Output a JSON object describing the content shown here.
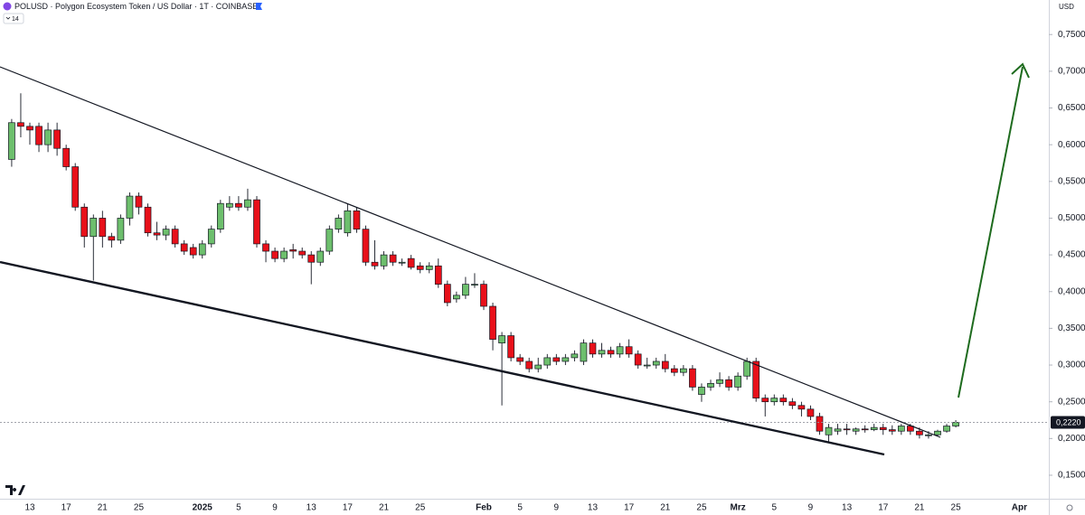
{
  "chart_data": {
    "type": "candlestick",
    "title": "POLUSD · Polygon Ecosystem Token / US Dollar · 1T · COINBASE",
    "badge": "14",
    "currency": "USD",
    "up_color": "#6dbf6d",
    "down_color": "#e8101a",
    "grid": false,
    "categories": [
      null,
      null,
      "13",
      null,
      null,
      null,
      "17",
      null,
      null,
      null,
      "21",
      null,
      null,
      null,
      "25",
      null,
      null,
      null,
      null,
      null,
      null,
      "2025",
      null,
      null,
      null,
      "5",
      null,
      null,
      null,
      "9",
      null,
      null,
      null,
      "13",
      null,
      null,
      null,
      "17",
      null,
      null,
      null,
      "21",
      null,
      null,
      null,
      "25",
      null,
      null,
      null,
      null,
      null,
      null,
      "Feb",
      null,
      null,
      null,
      "5",
      null,
      null,
      null,
      "9",
      null,
      null,
      null,
      "13",
      null,
      null,
      null,
      "17",
      null,
      null,
      null,
      "21",
      null,
      null,
      null,
      "25",
      null,
      null,
      null,
      "Mrz",
      null,
      null,
      null,
      "5",
      null,
      null,
      null,
      "9",
      null,
      null,
      null,
      "13",
      null,
      null,
      null,
      "17",
      null,
      null,
      null,
      "21",
      null,
      null,
      null,
      "25",
      null,
      null,
      null,
      null,
      null,
      null,
      "Apr"
    ],
    "open": [
      0.58,
      0.63,
      0.625,
      0.625,
      0.6,
      0.62,
      0.595,
      0.57,
      0.515,
      0.475,
      0.5,
      0.475,
      0.47,
      0.5,
      0.53,
      0.515,
      0.48,
      0.477,
      0.485,
      0.465,
      0.46,
      0.45,
      0.465,
      0.485,
      0.515,
      0.52,
      0.515,
      0.525,
      0.465,
      0.455,
      0.445,
      0.457,
      0.455,
      0.45,
      0.44,
      0.455,
      0.485,
      0.48,
      0.51,
      0.485,
      0.44,
      0.435,
      0.45,
      0.44,
      0.445,
      0.435,
      0.43,
      0.435,
      0.41,
      0.39,
      0.395,
      0.41,
      0.41,
      0.38,
      0.33,
      0.34,
      0.31,
      0.305,
      0.295,
      0.3,
      0.31,
      0.305,
      0.31,
      0.305,
      0.33,
      0.315,
      0.32,
      0.315,
      0.325,
      0.315,
      0.3,
      0.3,
      0.305,
      0.295,
      0.29,
      0.295,
      0.26,
      0.27,
      0.275,
      0.28,
      0.27,
      0.285,
      0.305,
      0.255,
      0.25,
      0.255,
      0.25,
      0.245,
      0.24,
      0.23,
      0.205,
      0.21,
      0.213,
      0.21,
      0.213,
      0.212,
      0.215,
      0.212,
      0.21,
      0.217,
      0.21,
      0.205,
      0.205,
      0.21,
      0.217,
      null,
      null,
      null,
      null,
      null,
      null,
      null
    ],
    "high": [
      0.635,
      0.67,
      0.63,
      0.63,
      0.63,
      0.63,
      0.6,
      0.575,
      0.52,
      0.505,
      0.51,
      0.48,
      0.505,
      0.535,
      0.535,
      0.52,
      0.495,
      0.49,
      0.49,
      0.47,
      0.465,
      0.47,
      0.49,
      0.525,
      0.53,
      0.53,
      0.54,
      0.53,
      0.47,
      0.46,
      0.46,
      0.465,
      0.46,
      0.455,
      0.46,
      0.49,
      0.505,
      0.52,
      0.515,
      0.49,
      0.47,
      0.455,
      0.455,
      0.445,
      0.45,
      0.44,
      0.44,
      0.445,
      0.415,
      0.4,
      0.42,
      0.425,
      0.415,
      0.385,
      0.345,
      0.345,
      0.315,
      0.31,
      0.31,
      0.315,
      0.315,
      0.315,
      0.32,
      0.335,
      0.335,
      0.33,
      0.325,
      0.33,
      0.335,
      0.32,
      0.31,
      0.31,
      0.315,
      0.3,
      0.3,
      0.3,
      0.275,
      0.28,
      0.29,
      0.285,
      0.29,
      0.31,
      0.31,
      0.26,
      0.26,
      0.26,
      0.255,
      0.25,
      0.245,
      0.235,
      0.22,
      0.22,
      0.22,
      0.215,
      0.218,
      0.22,
      0.22,
      0.218,
      0.22,
      0.22,
      0.215,
      0.21,
      0.212,
      0.22,
      0.225,
      null,
      null,
      null,
      null,
      null,
      null,
      null
    ],
    "low": [
      0.57,
      0.61,
      0.6,
      0.59,
      0.59,
      0.585,
      0.565,
      0.51,
      0.46,
      0.415,
      0.46,
      0.46,
      0.465,
      0.49,
      0.505,
      0.475,
      0.47,
      0.47,
      0.46,
      0.45,
      0.445,
      0.445,
      0.46,
      0.48,
      0.51,
      0.51,
      0.51,
      0.46,
      0.44,
      0.44,
      0.44,
      0.445,
      0.445,
      0.41,
      0.435,
      0.45,
      0.48,
      0.475,
      0.48,
      0.435,
      0.43,
      0.43,
      0.435,
      0.435,
      0.43,
      0.425,
      0.425,
      0.405,
      0.38,
      0.385,
      0.39,
      0.405,
      0.375,
      0.32,
      0.245,
      0.305,
      0.3,
      0.29,
      0.29,
      0.295,
      0.3,
      0.3,
      0.305,
      0.3,
      0.31,
      0.31,
      0.31,
      0.31,
      0.31,
      0.295,
      0.295,
      0.295,
      0.29,
      0.285,
      0.285,
      0.265,
      0.25,
      0.265,
      0.27,
      0.265,
      0.265,
      0.28,
      0.25,
      0.23,
      0.245,
      0.245,
      0.24,
      0.23,
      0.225,
      0.205,
      0.195,
      0.205,
      0.205,
      0.205,
      0.208,
      0.21,
      0.205,
      0.205,
      0.205,
      0.205,
      0.2,
      0.2,
      0.203,
      0.208,
      0.215,
      null,
      null,
      null,
      null,
      null,
      null,
      null
    ],
    "close": [
      0.63,
      0.625,
      0.62,
      0.6,
      0.62,
      0.595,
      0.57,
      0.515,
      0.475,
      0.5,
      0.475,
      0.47,
      0.5,
      0.53,
      0.515,
      0.48,
      0.477,
      0.485,
      0.465,
      0.455,
      0.45,
      0.465,
      0.485,
      0.52,
      0.52,
      0.515,
      0.525,
      0.465,
      0.455,
      0.445,
      0.455,
      0.455,
      0.45,
      0.44,
      0.455,
      0.485,
      0.5,
      0.51,
      0.485,
      0.44,
      0.435,
      0.45,
      0.44,
      0.44,
      0.433,
      0.43,
      0.435,
      0.41,
      0.385,
      0.395,
      0.41,
      0.41,
      0.38,
      0.335,
      0.34,
      0.31,
      0.305,
      0.295,
      0.3,
      0.31,
      0.305,
      0.31,
      0.315,
      0.33,
      0.315,
      0.32,
      0.315,
      0.325,
      0.315,
      0.3,
      0.3,
      0.305,
      0.295,
      0.29,
      0.295,
      0.27,
      0.27,
      0.275,
      0.28,
      0.27,
      0.285,
      0.305,
      0.255,
      0.25,
      0.255,
      0.25,
      0.245,
      0.24,
      0.23,
      0.21,
      0.215,
      0.213,
      0.212,
      0.213,
      0.212,
      0.215,
      0.212,
      0.21,
      0.217,
      0.21,
      0.205,
      0.205,
      0.21,
      0.217,
      0.222,
      null,
      null,
      null,
      null,
      null,
      null,
      null
    ],
    "ylim": [
      0.118,
      0.797
    ],
    "yticks": [
      {
        "value": 0.75,
        "label": "0,7500"
      },
      {
        "value": 0.7,
        "label": "0,7000"
      },
      {
        "value": 0.65,
        "label": "0,6500"
      },
      {
        "value": 0.6,
        "label": "0,6000"
      },
      {
        "value": 0.55,
        "label": "0,5500"
      },
      {
        "value": 0.5,
        "label": "0,5000"
      },
      {
        "value": 0.45,
        "label": "0,4500"
      },
      {
        "value": 0.4,
        "label": "0,4000"
      },
      {
        "value": 0.35,
        "label": "0,3500"
      },
      {
        "value": 0.3,
        "label": "0,3000"
      },
      {
        "value": 0.25,
        "label": "0,2500"
      },
      {
        "value": 0.2,
        "label": "0,2000"
      },
      {
        "value": 0.15,
        "label": "0,1500"
      }
    ],
    "last_price": {
      "value": 0.222,
      "label": "0,2220"
    }
  }
}
